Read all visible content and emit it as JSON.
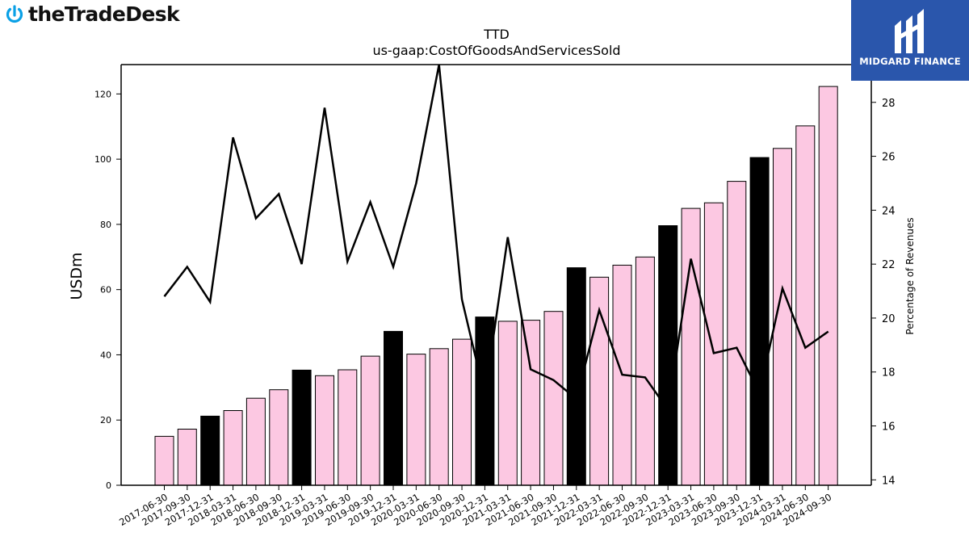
{
  "brand": {
    "left_logo_text": "theTradeDesk",
    "right_logo_text": "MIDGARD FINANCE"
  },
  "chart_data": {
    "type": "bar",
    "title": "TTD",
    "subtitle": "us-gaap:CostOfGoodsAndServicesSold",
    "ylabel": "USDm",
    "y2label": "Percentage of Revenues",
    "ylim": [
      0,
      129
    ],
    "y2lim": [
      13.8,
      29.4
    ],
    "yticks": [
      0,
      20,
      40,
      60,
      80,
      100,
      120
    ],
    "y2ticks": [
      14,
      16,
      18,
      20,
      22,
      24,
      26,
      28
    ],
    "categories": [
      "2017-06-30",
      "2017-09-30",
      "2017-12-31",
      "2018-03-31",
      "2018-06-30",
      "2018-09-30",
      "2018-12-31",
      "2019-03-31",
      "2019-06-30",
      "2019-09-30",
      "2019-12-31",
      "2020-03-31",
      "2020-06-30",
      "2020-09-30",
      "2020-12-31",
      "2021-03-31",
      "2021-06-30",
      "2021-09-30",
      "2021-12-31",
      "2022-03-31",
      "2022-06-30",
      "2022-09-30",
      "2022-12-31",
      "2023-03-31",
      "2023-06-30",
      "2023-09-30",
      "2023-12-31",
      "2024-03-31",
      "2024-06-30",
      "2024-09-30"
    ],
    "series": [
      {
        "type": "bar",
        "axis": "left",
        "values": [
          15.0,
          17.2,
          21.2,
          22.9,
          26.7,
          29.3,
          35.3,
          33.6,
          35.4,
          39.6,
          47.2,
          40.2,
          41.9,
          44.8,
          51.6,
          50.3,
          50.6,
          53.3,
          66.7,
          63.8,
          67.5,
          70.0,
          79.6,
          84.9,
          86.6,
          93.2,
          100.5,
          103.3,
          110.2,
          122.3
        ],
        "highlight": [
          false,
          false,
          true,
          false,
          false,
          false,
          true,
          false,
          false,
          false,
          true,
          false,
          false,
          false,
          true,
          false,
          false,
          false,
          true,
          false,
          false,
          false,
          true,
          false,
          false,
          false,
          true,
          false,
          false,
          false
        ]
      },
      {
        "type": "line",
        "axis": "right",
        "values": [
          20.8,
          21.9,
          20.6,
          26.7,
          23.7,
          24.6,
          22.0,
          27.8,
          22.1,
          24.3,
          21.9,
          25.0,
          29.4,
          20.7,
          17.1,
          23.0,
          18.1,
          17.7,
          17.0,
          20.3,
          17.9,
          17.8,
          16.6,
          22.2,
          18.7,
          18.9,
          17.2,
          21.1,
          18.9,
          19.5
        ]
      }
    ],
    "colors": {
      "bar": "#fcc8e2",
      "bar_highlight": "#000000",
      "line": "#000000"
    }
  }
}
